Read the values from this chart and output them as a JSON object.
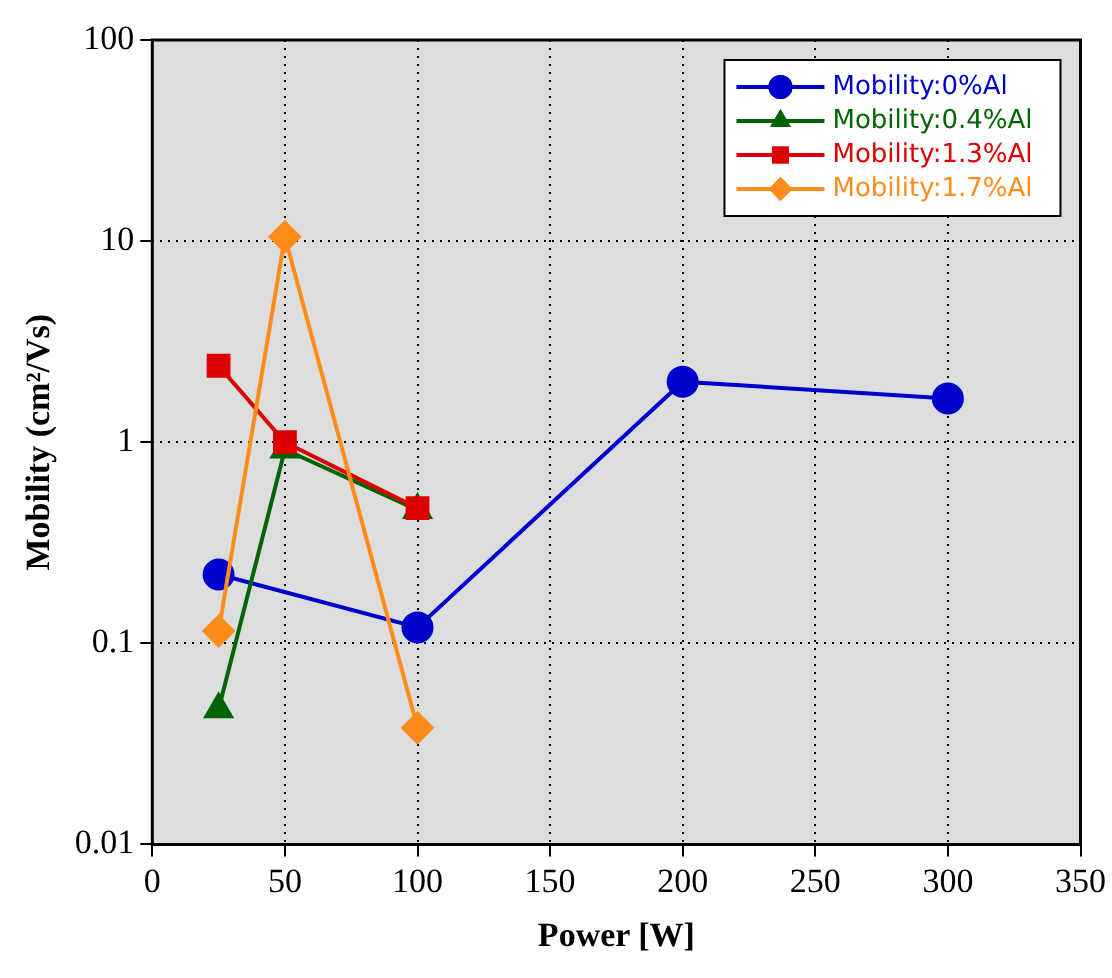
{
  "chart_data": {
    "type": "line",
    "xlabel": "Power [W]",
    "ylabel": "Mobility (cm²/Vs)",
    "log": "y",
    "grid": true,
    "legend": "top right",
    "line_style": "solid",
    "xlim": [
      0,
      350
    ],
    "xticks": [
      0,
      50,
      100,
      150,
      200,
      250,
      300,
      350
    ],
    "ylim": [
      0.01,
      100
    ],
    "yticks": [
      0.01,
      0.1,
      1,
      10,
      100
    ],
    "series": [
      {
        "name": "Mobility:0%Al",
        "color": "#0000cc",
        "marker": "circle",
        "x": [
          25,
          100,
          200,
          300
        ],
        "values": [
          0.22,
          0.12,
          2.0,
          1.65
        ]
      },
      {
        "name": "Mobility:0.4%Al",
        "color": "#006400",
        "marker": "triangle",
        "x": [
          25,
          50,
          100
        ],
        "values": [
          0.047,
          0.92,
          0.46
        ]
      },
      {
        "name": "Mobility:1.3%Al",
        "color": "#dd0000",
        "marker": "square",
        "x": [
          25,
          50,
          100
        ],
        "values": [
          2.4,
          1.0,
          0.47
        ]
      },
      {
        "name": "Mobility:1.7%Al",
        "color": "#ff8c1a",
        "marker": "diamond",
        "x": [
          25,
          50,
          100
        ],
        "values": [
          0.115,
          10.5,
          0.038
        ]
      }
    ]
  }
}
